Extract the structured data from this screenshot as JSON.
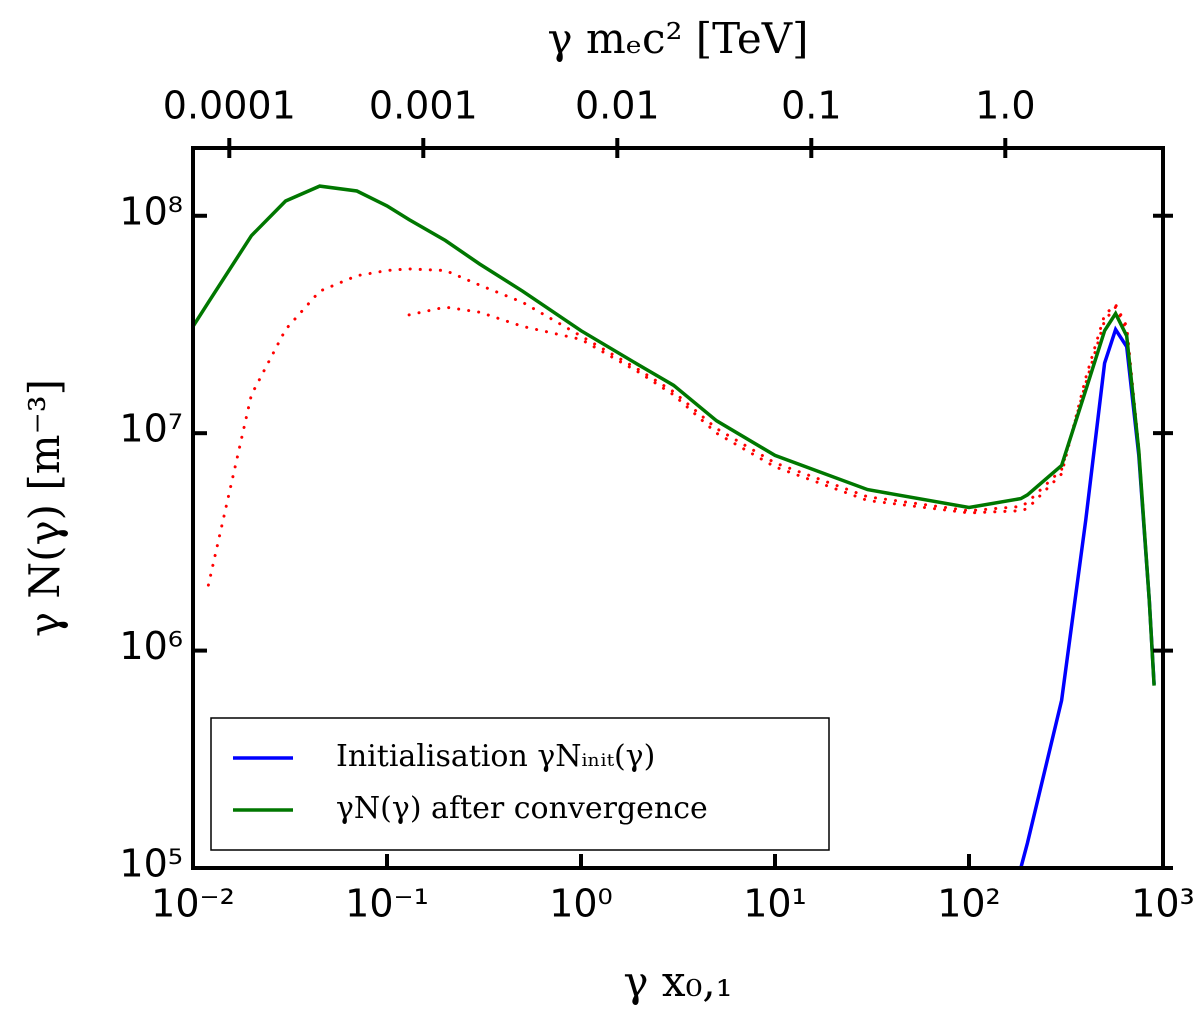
{
  "chart_data": {
    "type": "line",
    "xlabel": "γ x₀,₁",
    "ylabel": "γ N(γ)   [m⁻³]",
    "x2label": "γ mₑc²   [TeV]",
    "x": [
      0.01,
      0.012,
      0.02,
      0.03,
      0.045,
      0.07,
      0.1,
      0.13,
      0.2,
      0.3,
      0.5,
      1,
      2,
      3,
      5,
      10,
      30,
      100,
      185,
      200,
      300,
      400,
      500,
      570,
      650,
      750,
      850,
      900
    ],
    "series": [
      {
        "color": "#ff0000",
        "style": "dotted",
        "values": [
          null,
          null,
          null,
          null,
          null,
          null,
          null,
          35000000,
          38000000,
          36000000,
          31000000,
          27000000,
          19000000,
          15000000,
          10000000,
          7000000,
          4900000,
          4300000,
          4400000,
          4500000,
          6500000,
          18000000,
          35000000,
          39000000,
          31000000,
          8500000,
          1700000,
          700000
        ]
      },
      {
        "color": "#ff0000",
        "style": "dotted",
        "values": [
          null,
          2000000,
          15000000,
          30000000,
          45000000,
          53000000,
          56000000,
          57000000,
          56000000,
          48000000,
          40000000,
          28000000,
          19500000,
          15500000,
          10500000,
          7300000,
          5100000,
          4400000,
          4600000,
          4800000,
          6800000,
          17000000,
          33000000,
          38000000,
          30000000,
          8400000,
          1700000,
          700000
        ]
      },
      {
        "name": "Initialisation γNᵢₙᵢₜ(γ)",
        "color": "#0000ff",
        "style": "solid",
        "values": [
          null,
          null,
          null,
          null,
          null,
          null,
          null,
          null,
          null,
          null,
          null,
          null,
          null,
          null,
          null,
          null,
          null,
          null,
          100000,
          130000,
          590000,
          4000000,
          21000000,
          30000000,
          25000000,
          7900000,
          1700000,
          700000
        ]
      },
      {
        "name": "γN(γ) after convergence",
        "color": "#007700",
        "style": "solid",
        "values": [
          31000000,
          40000000,
          81000000,
          117000000,
          137000000,
          130000000,
          111000000,
          96000000,
          77000000,
          60000000,
          45000000,
          29600000,
          20500000,
          16600000,
          11400000,
          7900000,
          5500000,
          4550000,
          5000000,
          5200000,
          7100000,
          15800000,
          29600000,
          35500000,
          28000000,
          8300000,
          1700000,
          690000
        ]
      }
    ],
    "xlim": [
      0.01,
      1000
    ],
    "xticks": [
      {
        "value": 0.01,
        "label": "10⁻²"
      },
      {
        "value": 0.1,
        "label": "10⁻¹"
      },
      {
        "value": 1,
        "label": "10⁰"
      },
      {
        "value": 10,
        "label": "10¹"
      },
      {
        "value": 100,
        "label": "10²"
      },
      {
        "value": 1000,
        "label": "10³"
      }
    ],
    "x2lim": [
      6.5e-05,
      6.5
    ],
    "x2ticks": [
      0.0001,
      0.001,
      0.01,
      0.1,
      {
        "value": 1,
        "label": "1.0"
      }
    ],
    "ylim": [
      100000,
      205000000
    ],
    "yticks": [
      {
        "value": 100000,
        "label": "10⁵"
      },
      {
        "value": 1000000,
        "label": "10⁶"
      },
      {
        "value": 10000000,
        "label": "10⁷"
      },
      {
        "value": 100000000,
        "label": "10⁸"
      }
    ],
    "xscale": "log",
    "yscale": "log",
    "x2scale": "log",
    "grid": false,
    "legend": "lower left"
  }
}
